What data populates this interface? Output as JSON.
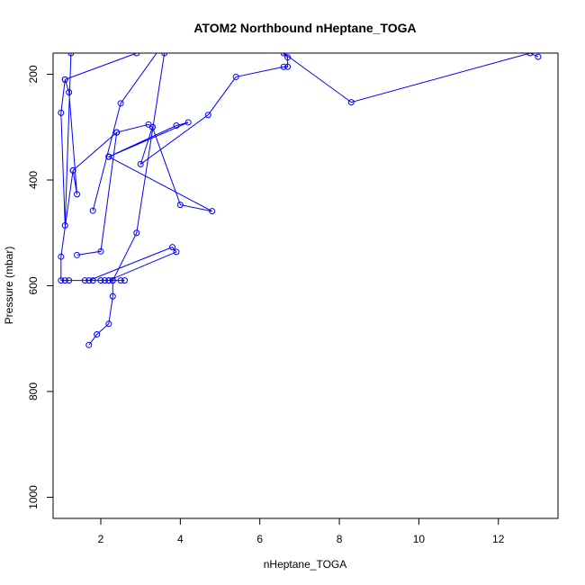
{
  "chart_data": {
    "type": "line",
    "title": "ATOM2 Northbound nHeptane_TOGA",
    "xlabel": "nHeptane_TOGA",
    "ylabel": "Pressure (mbar)",
    "xlim": [
      0.8,
      13.5
    ],
    "ylim": [
      1040,
      160
    ],
    "y_reversed": true,
    "x_ticks": [
      2,
      4,
      6,
      8,
      10,
      12
    ],
    "y_ticks": [
      200,
      400,
      600,
      800,
      1000
    ],
    "grid": false,
    "color": "#0000ff",
    "series": [
      {
        "values": [
          {
            "x": 1.7,
            "y": 712
          },
          {
            "x": 1.9,
            "y": 692
          },
          {
            "x": 2.2,
            "y": 672
          },
          {
            "x": 2.3,
            "y": 620
          },
          {
            "x": 2.3,
            "y": 590
          },
          {
            "x": 2.0,
            "y": 590
          },
          {
            "x": 2.1,
            "y": 590
          },
          {
            "x": 2.2,
            "y": 590
          },
          {
            "x": 2.5,
            "y": 590
          },
          {
            "x": 2.6,
            "y": 590
          },
          {
            "x": 1.8,
            "y": 590
          },
          {
            "x": 1.6,
            "y": 590
          },
          {
            "x": 1.2,
            "y": 590
          },
          {
            "x": 1.1,
            "y": 590
          },
          {
            "x": 1.0,
            "y": 590
          },
          {
            "x": 1.0,
            "y": 545
          },
          {
            "x": 1.3,
            "y": 382
          },
          {
            "x": 1.4,
            "y": 427
          },
          {
            "x": 1.2,
            "y": 234
          },
          {
            "x": 1.1,
            "y": 210
          },
          {
            "x": 1.0,
            "y": 273
          },
          {
            "x": 1.1,
            "y": 486
          },
          {
            "x": 1.25,
            "y": 160
          }
        ]
      },
      {
        "values": [
          {
            "x": 1.4,
            "y": 542
          },
          {
            "x": 2.0,
            "y": 535
          },
          {
            "x": 2.4,
            "y": 310
          },
          {
            "x": 3.2,
            "y": 295
          },
          {
            "x": 3.3,
            "y": 300
          },
          {
            "x": 3.0,
            "y": 370
          },
          {
            "x": 4.7,
            "y": 277
          },
          {
            "x": 5.4,
            "y": 205
          },
          {
            "x": 6.6,
            "y": 186
          },
          {
            "x": 6.7,
            "y": 186
          },
          {
            "x": 6.7,
            "y": 168
          },
          {
            "x": 6.5,
            "y": 155
          }
        ]
      },
      {
        "values": [
          {
            "x": 1.7,
            "y": 590
          },
          {
            "x": 3.8,
            "y": 527
          },
          {
            "x": 3.9,
            "y": 536
          },
          {
            "x": 2.2,
            "y": 590
          }
        ]
      },
      {
        "values": [
          {
            "x": 2.2,
            "y": 356
          },
          {
            "x": 2.2,
            "y": 356
          },
          {
            "x": 3.9,
            "y": 297
          },
          {
            "x": 4.2,
            "y": 291
          },
          {
            "x": 2.2,
            "y": 356
          },
          {
            "x": 4.8,
            "y": 459
          },
          {
            "x": 4.0,
            "y": 447
          },
          {
            "x": 3.3,
            "y": 300
          }
        ]
      },
      {
        "values": [
          {
            "x": 1.8,
            "y": 458
          },
          {
            "x": 2.5,
            "y": 255
          },
          {
            "x": 3.5,
            "y": 150
          }
        ]
      },
      {
        "values": [
          {
            "x": 13.0,
            "y": 167
          },
          {
            "x": 12.8,
            "y": 160
          },
          {
            "x": 8.3,
            "y": 253
          },
          {
            "x": 6.6,
            "y": 160
          },
          {
            "x": 4.4,
            "y": 157
          },
          {
            "x": 2.8,
            "y": 155
          }
        ]
      },
      {
        "values": [
          {
            "x": 3.6,
            "y": 160
          },
          {
            "x": 2.9,
            "y": 500
          },
          {
            "x": 2.3,
            "y": 590
          }
        ]
      },
      {
        "values": [
          {
            "x": 1.1,
            "y": 210
          },
          {
            "x": 2.9,
            "y": 160
          }
        ]
      },
      {
        "values": [
          {
            "x": 1.3,
            "y": 382
          },
          {
            "x": 2.4,
            "y": 310
          }
        ]
      }
    ]
  }
}
